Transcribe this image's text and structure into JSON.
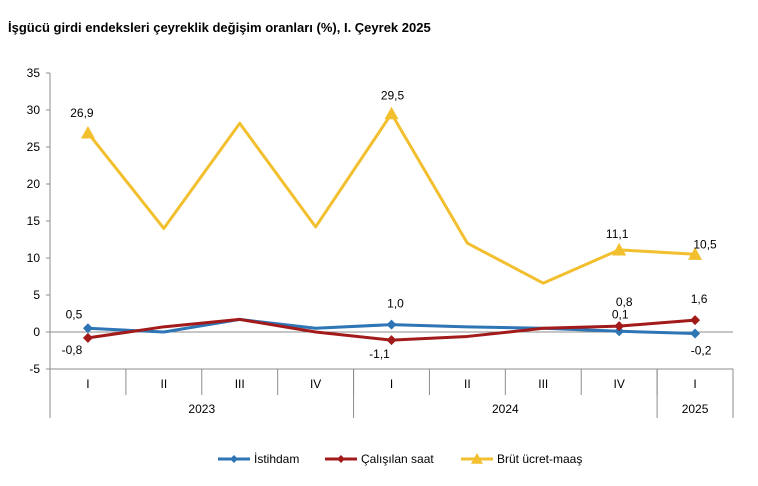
{
  "chart_data": {
    "type": "line",
    "title": "İşgücü girdi endeksleri çeyreklik değişim oranları (%), I. Çeyrek 2025",
    "xlabel": "",
    "ylabel": "",
    "ylim": [
      -5,
      35
    ],
    "yticks": [
      "-5",
      "0",
      "5",
      "10",
      "15",
      "20",
      "25",
      "30",
      "35"
    ],
    "grid": false,
    "legend_position": "bottom",
    "categories": [
      "I",
      "II",
      "III",
      "IV",
      "I",
      "II",
      "III",
      "IV",
      "I"
    ],
    "year_groups": [
      {
        "label": "2023",
        "count": 4
      },
      {
        "label": "2024",
        "count": 4
      },
      {
        "label": "2025",
        "count": 1
      }
    ],
    "series": [
      {
        "name": "İstihdam",
        "color": "#2e75b6",
        "marker": "diamond",
        "values": [
          0.5,
          0.0,
          1.7,
          0.5,
          1.0,
          0.7,
          0.5,
          0.1,
          -0.2
        ],
        "data_labels": [
          "0,5",
          "",
          "",
          "",
          "1,0",
          "",
          "",
          "0,1",
          "-0,2"
        ]
      },
      {
        "name": "Çalışılan saat",
        "color": "#a31a1a",
        "marker": "diamond",
        "values": [
          -0.8,
          0.7,
          1.7,
          0.0,
          -1.1,
          -0.6,
          0.5,
          0.8,
          1.6
        ],
        "data_labels": [
          "-0,8",
          "",
          "",
          "",
          "-1,1",
          "",
          "",
          "0,8",
          "1,6"
        ]
      },
      {
        "name": "Brüt ücret-maaş",
        "color": "#f2bf2f",
        "marker": "triangle",
        "values": [
          26.9,
          14.0,
          28.2,
          14.2,
          29.5,
          12.0,
          6.6,
          11.1,
          10.5
        ],
        "data_labels": [
          "26,9",
          "",
          "",
          "",
          "29,5",
          "",
          "",
          "11,1",
          "10,5"
        ]
      }
    ]
  }
}
